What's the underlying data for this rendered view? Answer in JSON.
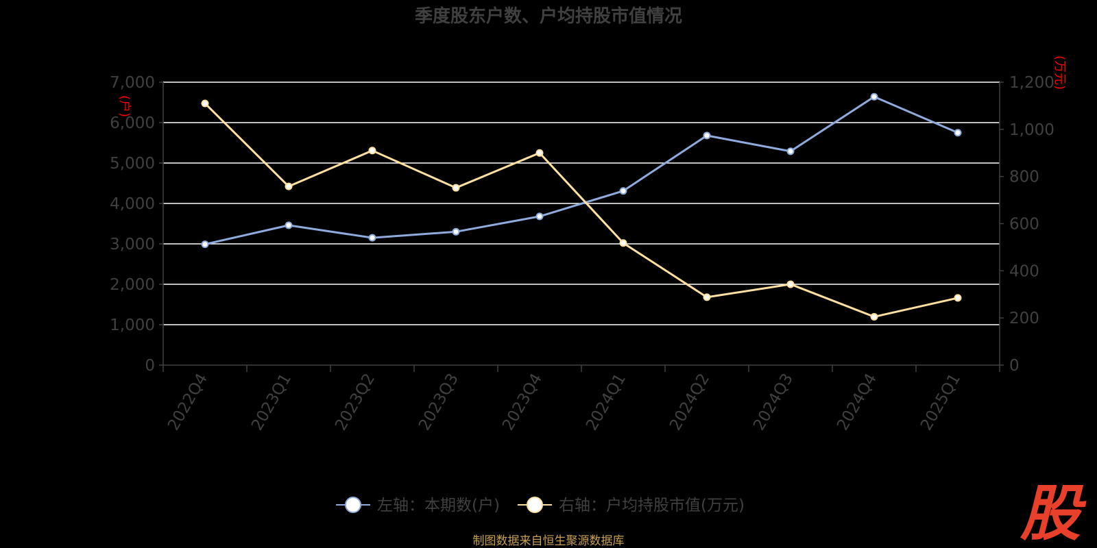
{
  "chart_data": {
    "type": "line",
    "title": "季度股东户数、户均持股市值情况",
    "categories": [
      "2022Q4",
      "2023Q1",
      "2023Q2",
      "2023Q3",
      "2023Q4",
      "2024Q1",
      "2024Q2",
      "2024Q3",
      "2024Q4",
      "2025Q1"
    ],
    "left_axis": {
      "unit": "(户)",
      "ylim": [
        0,
        7000
      ],
      "ticks": [
        "0",
        "1,000",
        "2,000",
        "3,000",
        "4,000",
        "5,000",
        "6,000",
        "7,000"
      ],
      "tick_values": [
        0,
        1000,
        2000,
        3000,
        4000,
        5000,
        6000,
        7000
      ]
    },
    "right_axis": {
      "unit": "(万元)",
      "ylim": [
        0,
        1200
      ],
      "ticks": [
        "0",
        "200",
        "400",
        "600",
        "800",
        "1,000",
        "1,200"
      ],
      "tick_values": [
        0,
        200,
        400,
        600,
        800,
        1000,
        1200
      ]
    },
    "series": [
      {
        "name": "左轴：本期数(户)",
        "axis": "left",
        "color": "#8faadc",
        "values": [
          2990,
          3460,
          3150,
          3300,
          3680,
          4310,
          5680,
          5290,
          6640,
          5750
        ]
      },
      {
        "name": "右轴：户均持股市值(万元)",
        "axis": "right",
        "color": "#ffe0a0",
        "values": [
          1110,
          758,
          910,
          752,
          900,
          518,
          288,
          343,
          205,
          285
        ]
      }
    ],
    "grid": true,
    "legend": "bottom-center"
  },
  "colors": {
    "background": "#000000",
    "title": "#404040",
    "axis": "#404040",
    "grid": "#ffffff",
    "unit_label": "#ff0000",
    "source": "#c8a050",
    "logo": "#e8402a"
  },
  "footer": {
    "source": "制图数据来自恒生聚源数据库"
  },
  "logo": {
    "glyph": "股"
  }
}
